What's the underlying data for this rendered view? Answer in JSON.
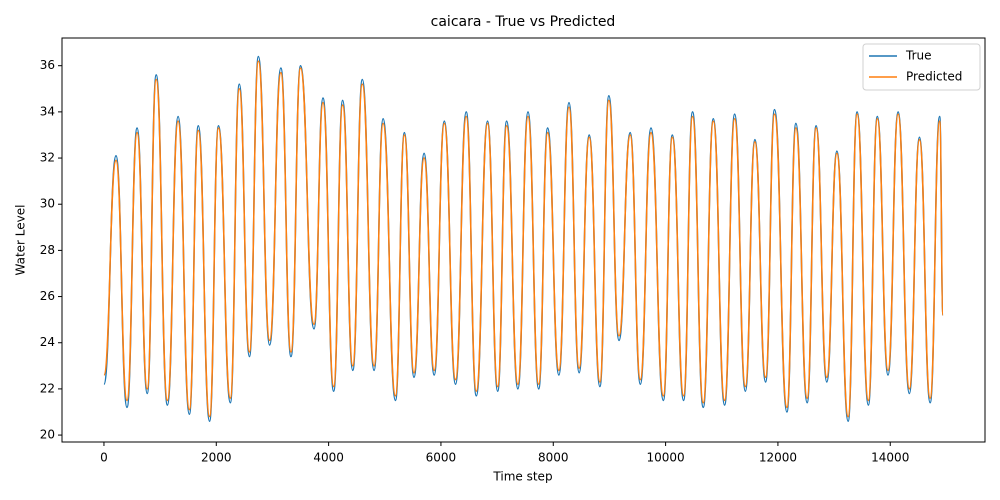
{
  "chart_data": {
    "type": "line",
    "title": "caicara - True vs Predicted",
    "xlabel": "Time step",
    "ylabel": "Water Level",
    "x": [
      0,
      215,
      410,
      590,
      770,
      930,
      1130,
      1320,
      1520,
      1680,
      1880,
      2040,
      2250,
      2410,
      2590,
      2750,
      2950,
      3150,
      3330,
      3500,
      3740,
      3900,
      4090,
      4250,
      4430,
      4600,
      4810,
      4970,
      5190,
      5350,
      5520,
      5700,
      5880,
      6060,
      6260,
      6450,
      6630,
      6830,
      7010,
      7170,
      7370,
      7550,
      7740,
      7900,
      8100,
      8280,
      8460,
      8640,
      8830,
      8990,
      9170,
      9370,
      9550,
      9740,
      9960,
      10120,
      10320,
      10480,
      10670,
      10850,
      11050,
      11230,
      11420,
      11590,
      11780,
      11940,
      12160,
      12320,
      12520,
      12680,
      12870,
      13050,
      13250,
      13410,
      13610,
      13770,
      13960,
      14140,
      14340,
      14520,
      14710,
      14880,
      14940
    ],
    "series": [
      {
        "name": "True",
        "color": "#1f77b4",
        "values": [
          22.2,
          32.1,
          21.2,
          33.3,
          21.8,
          35.6,
          21.3,
          33.8,
          20.9,
          33.4,
          20.6,
          33.4,
          21.4,
          35.2,
          23.4,
          36.4,
          23.9,
          35.9,
          23.4,
          36.0,
          24.6,
          34.6,
          21.9,
          34.5,
          22.8,
          35.4,
          22.8,
          33.7,
          21.5,
          33.1,
          22.5,
          32.2,
          22.6,
          33.6,
          22.2,
          34.0,
          21.7,
          33.6,
          21.9,
          33.6,
          22.0,
          34.0,
          22.0,
          33.3,
          22.6,
          34.4,
          22.7,
          33.0,
          22.1,
          34.7,
          24.1,
          33.1,
          22.2,
          33.3,
          21.5,
          33.0,
          21.5,
          34.0,
          21.2,
          33.7,
          21.3,
          33.9,
          21.9,
          32.8,
          22.3,
          34.1,
          21.0,
          33.5,
          21.4,
          33.4,
          22.3,
          32.3,
          20.6,
          34.0,
          21.3,
          33.8,
          22.6,
          34.0,
          21.8,
          32.9,
          21.4,
          33.8,
          25.2
        ]
      },
      {
        "name": "Predicted",
        "color": "#ff7f0e",
        "values": [
          22.6,
          31.9,
          21.5,
          33.1,
          22.0,
          35.4,
          21.5,
          33.6,
          21.1,
          33.2,
          20.8,
          33.3,
          21.6,
          35.0,
          23.6,
          36.2,
          24.1,
          35.7,
          23.6,
          35.9,
          24.8,
          34.4,
          22.1,
          34.3,
          23.0,
          35.2,
          23.0,
          33.5,
          21.7,
          33.0,
          22.7,
          32.0,
          22.8,
          33.5,
          22.4,
          33.8,
          21.9,
          33.5,
          22.1,
          33.4,
          22.2,
          33.8,
          22.2,
          33.1,
          22.8,
          34.2,
          22.9,
          32.9,
          22.3,
          34.5,
          24.3,
          33.0,
          22.4,
          33.1,
          21.7,
          32.9,
          21.7,
          33.8,
          21.4,
          33.6,
          21.5,
          33.7,
          22.1,
          32.7,
          22.5,
          33.9,
          21.2,
          33.3,
          21.6,
          33.3,
          22.5,
          32.2,
          20.8,
          33.9,
          21.5,
          33.7,
          22.8,
          33.9,
          22.0,
          32.8,
          21.6,
          33.6,
          25.2
        ]
      }
    ],
    "xlim": [
      -747,
      15687
    ],
    "ylim": [
      19.7,
      37.2
    ],
    "xticks": [
      0,
      2000,
      4000,
      6000,
      8000,
      10000,
      12000,
      14000
    ],
    "yticks": [
      20,
      22,
      24,
      26,
      28,
      30,
      32,
      34,
      36
    ],
    "grid": false,
    "legend": "upper right"
  }
}
